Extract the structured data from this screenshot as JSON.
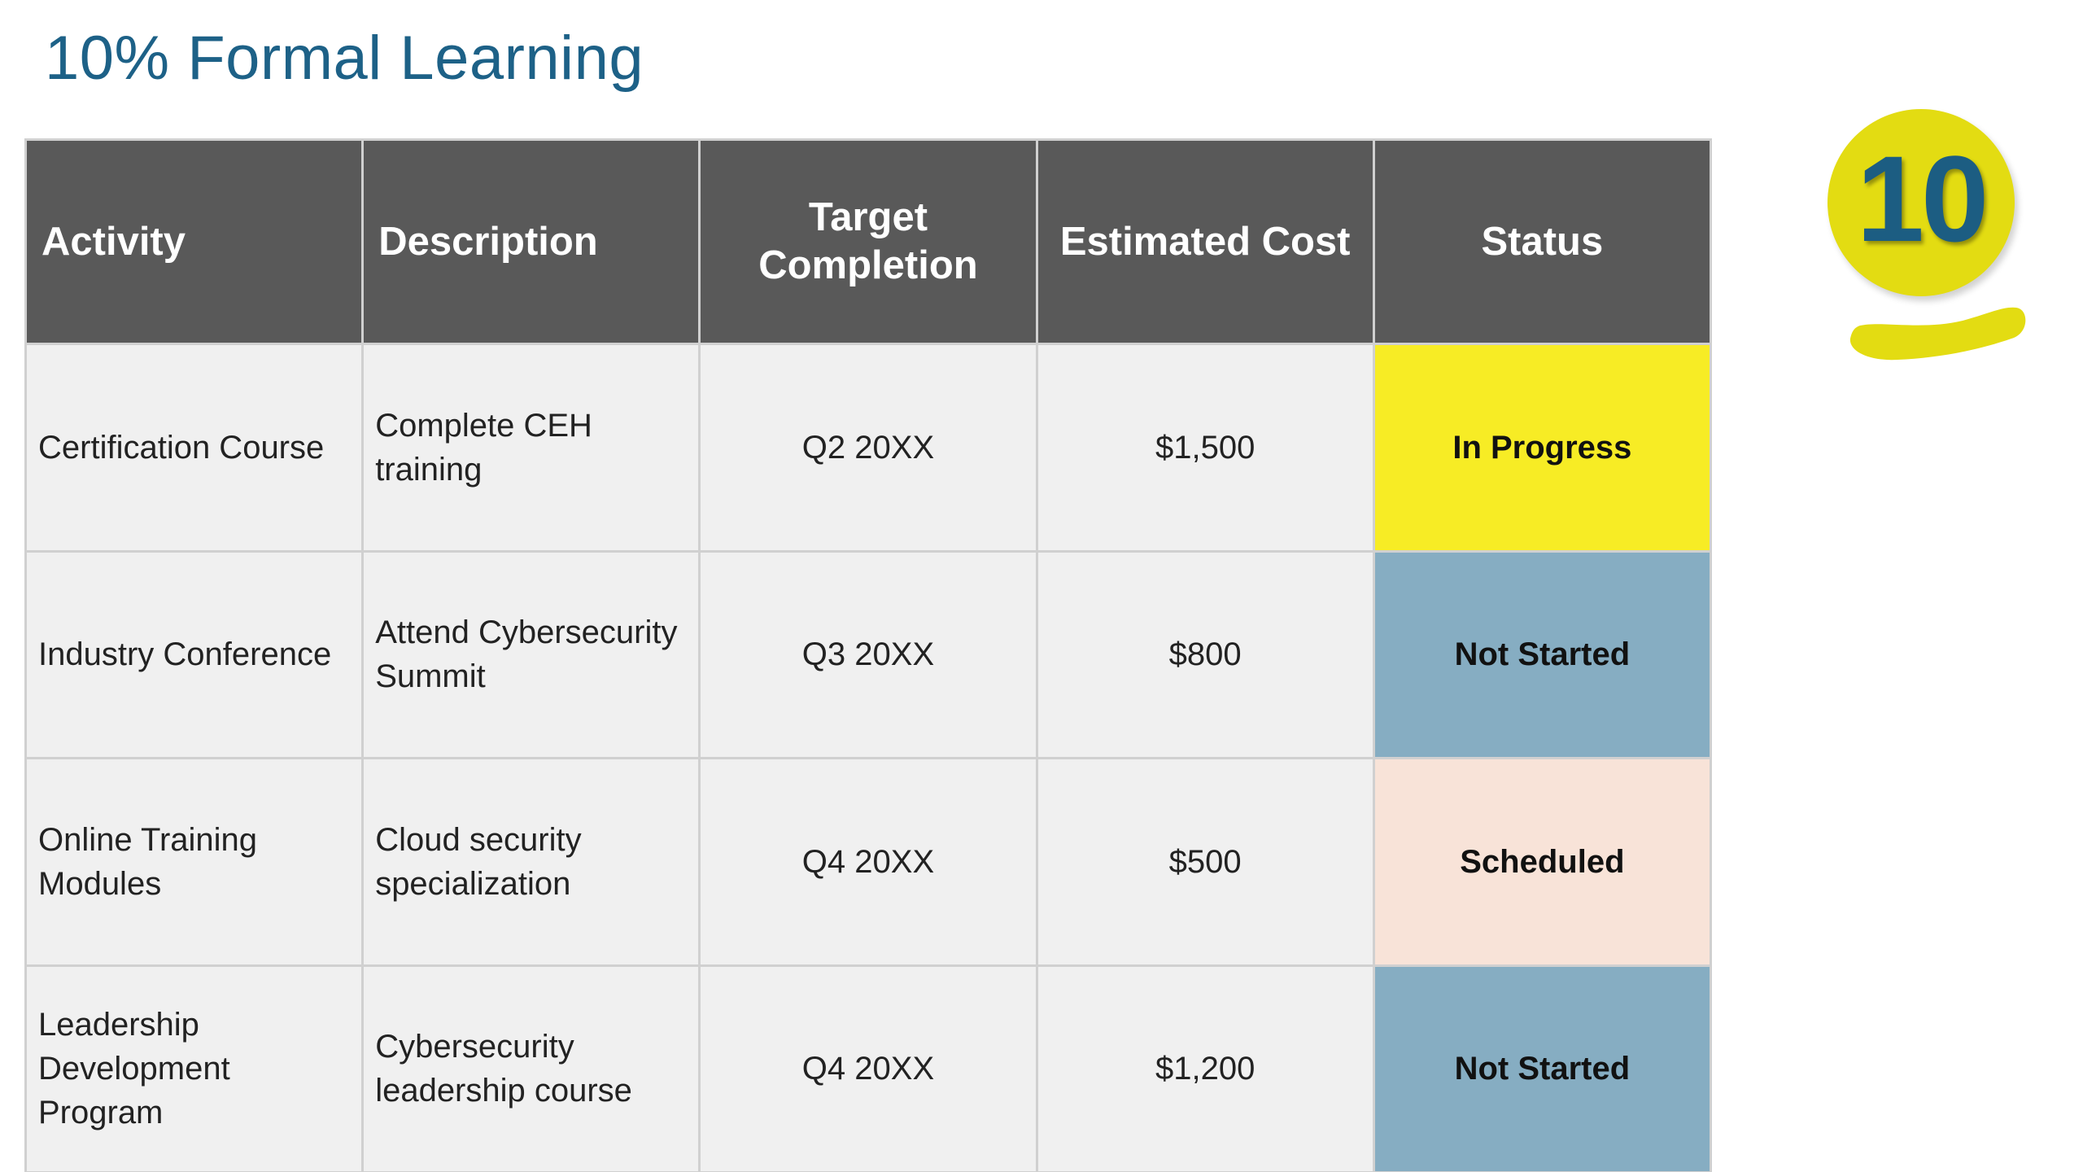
{
  "title": "10% Formal Learning",
  "badge": {
    "number": "10",
    "color": "#e3dc12",
    "number_color": "#1c5d82"
  },
  "table": {
    "headers": {
      "activity": "Activity",
      "description": "Description",
      "target_completion": "Target Completion",
      "estimated_cost": "Estimated Cost",
      "status": "Status"
    },
    "rows": [
      {
        "activity": "Certification Course",
        "description": "Complete CEH training",
        "target_completion": "Q2 20XX",
        "estimated_cost": "$1,500",
        "status": "In Progress",
        "status_color": "#f7ec25"
      },
      {
        "activity": "Industry Conference",
        "description": "Attend Cybersecurity Summit",
        "target_completion": "Q3 20XX",
        "estimated_cost": "$800",
        "status": "Not Started",
        "status_color": "#86adc2"
      },
      {
        "activity": "Online Training Modules",
        "description": "Cloud security specialization",
        "target_completion": "Q4 20XX",
        "estimated_cost": "$500",
        "status": "Scheduled",
        "status_color": "#f8e3d8"
      },
      {
        "activity": "Leadership Development Program",
        "description": "Cybersecurity leadership course",
        "target_completion": "Q4 20XX",
        "estimated_cost": "$1,200",
        "status": "Not Started",
        "status_color": "#86adc2"
      }
    ]
  },
  "colors": {
    "title": "#1d6187",
    "header_bg": "#595959",
    "cell_bg": "#f0f0f0"
  }
}
